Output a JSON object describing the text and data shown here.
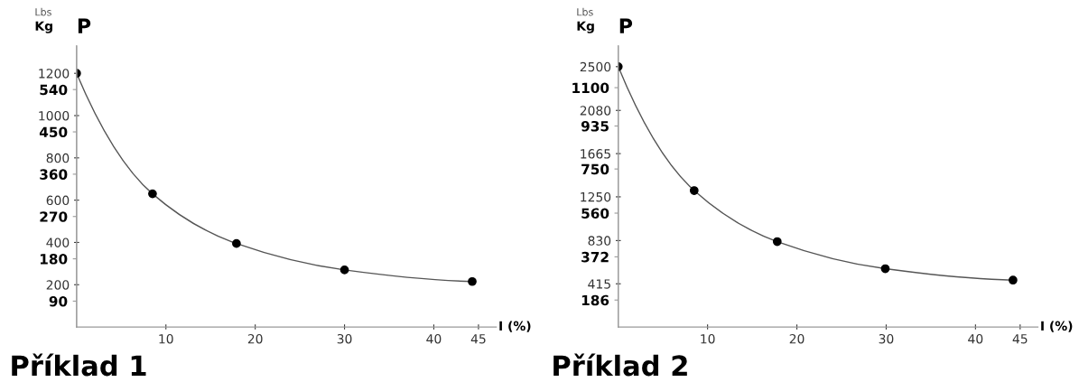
{
  "chart_data": [
    {
      "type": "line",
      "title": "Příklad 1",
      "xlabel": "I (%)",
      "annotations": [
        "P",
        "Lbs",
        "Kg"
      ],
      "x": [
        0,
        8.5,
        17.9,
        30,
        44.3
      ],
      "series": [
        {
          "color": "#555555",
          "values": [
            1200,
            630,
            395,
            270,
            215
          ]
        }
      ],
      "marker": "circle",
      "line_style": "solid",
      "grid": false,
      "legend": false,
      "xlim": [
        0,
        47
      ],
      "xticks": [
        10,
        20,
        30,
        40,
        45
      ],
      "ylim": [
        0,
        1330
      ],
      "yticks": [
        200,
        400,
        600,
        800,
        1000,
        1200
      ],
      "y2lim": [
        35,
        633
      ],
      "y2ticks": [
        90,
        180,
        270,
        360,
        450,
        540
      ]
    },
    {
      "type": "line",
      "title": "Příklad 2",
      "xlabel": "I (%)",
      "annotations": [
        "P",
        "Lbs",
        "Kg"
      ],
      "x": [
        0,
        8.5,
        17.8,
        29.9,
        44.2
      ],
      "series": [
        {
          "color": "#555555",
          "values": [
            2500,
            1310,
            820,
            560,
            450
          ]
        }
      ],
      "marker": "circle",
      "line_style": "solid",
      "grid": false,
      "legend": false,
      "xlim": [
        0,
        47
      ],
      "xticks": [
        10,
        20,
        30,
        40,
        45
      ],
      "ylim": [
        0,
        2700
      ],
      "yticks": [
        415,
        830,
        1250,
        1665,
        2080,
        2500
      ],
      "y2lim": [
        70,
        1280
      ],
      "y2ticks": [
        186,
        372,
        560,
        750,
        935,
        1100
      ]
    }
  ]
}
